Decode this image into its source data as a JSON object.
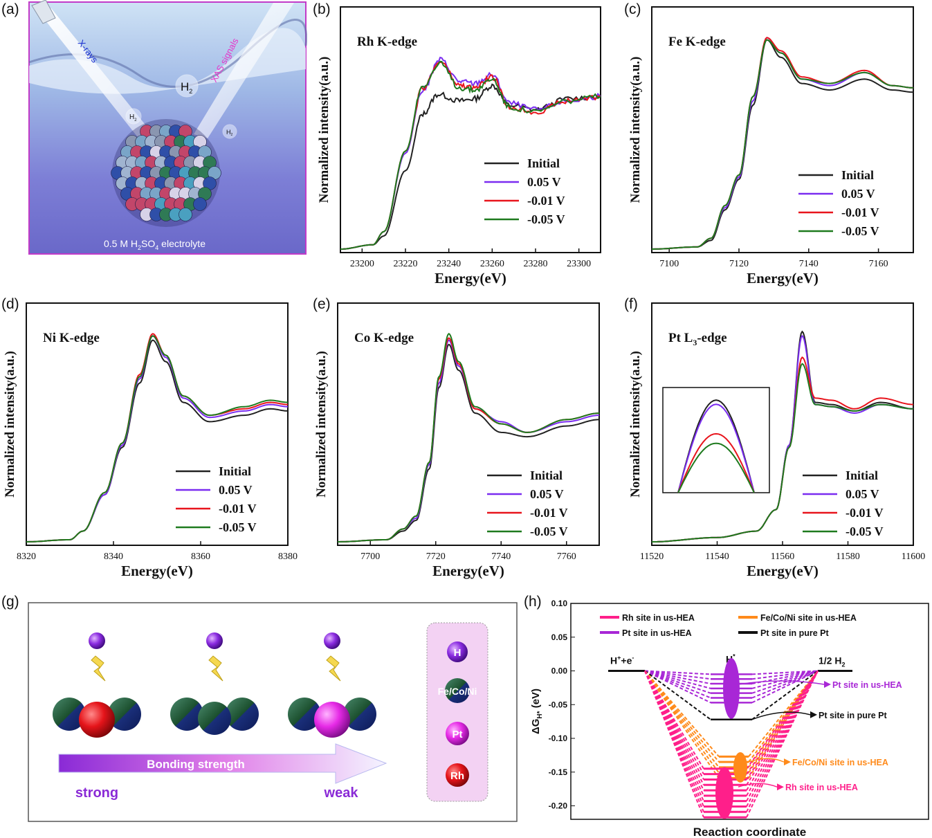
{
  "panel_letters": [
    "(a)",
    "(b)",
    "(c)",
    "(d)",
    "(e)",
    "(f)",
    "(g)",
    "(h)"
  ],
  "colors": {
    "initial": "#222222",
    "v005": "#7a2cf0",
    "vm001": "#e8141c",
    "vm005": "#1e7a1e",
    "h_rh": "#ff1f8a",
    "h_fe": "#ff8a1a",
    "h_pt": "#a827d6",
    "h_pure": "#111111"
  },
  "illustration": {
    "xrays": "X-rays",
    "xas": "XAS signals",
    "h2": "H",
    "h2_sub": "2",
    "electrolyte_pre": "0.5 M H",
    "electrolyte_sub1": "2",
    "electrolyte_mid": "SO",
    "electrolyte_sub2": "4",
    "electrolyte_post": " electrolyte"
  },
  "common": {
    "ylabel": "Normalized intensity(a.u.)",
    "xlabel": "Energy(eV)",
    "legend": [
      "Initial",
      "0.05 V",
      "-0.01 V",
      "-0.05 V"
    ]
  },
  "bonding": {
    "arrow_label": "Bonding strength",
    "strong": "strong",
    "weak": "weak",
    "key": [
      "H",
      "Fe/Co/Ni",
      "Pt",
      "Rh"
    ]
  },
  "chart_data": [
    {
      "type": "line",
      "id": "b",
      "title": "Rh K-edge",
      "xlabel": "Energy(eV)",
      "ylabel": "Normalized intensity(a.u.)",
      "xlim": [
        23190,
        23310
      ],
      "xticks": [
        23200,
        23220,
        23240,
        23260,
        23280,
        23300
      ],
      "series": [
        {
          "name": "Initial",
          "x": [
            23190,
            23205,
            23210,
            23220,
            23228,
            23235,
            23245,
            23252,
            23260,
            23268,
            23280,
            23295,
            23310
          ],
          "y": [
            0.0,
            0.02,
            0.06,
            0.36,
            0.62,
            0.71,
            0.68,
            0.69,
            0.75,
            0.66,
            0.64,
            0.69,
            0.7
          ]
        },
        {
          "name": "0.05 V",
          "x": [
            23190,
            23205,
            23210,
            23220,
            23228,
            23236,
            23245,
            23252,
            23260,
            23268,
            23280,
            23295,
            23310
          ],
          "y": [
            0.0,
            0.02,
            0.08,
            0.44,
            0.73,
            0.87,
            0.77,
            0.76,
            0.8,
            0.67,
            0.64,
            0.68,
            0.7
          ]
        },
        {
          "name": "-0.01 V",
          "x": [
            23190,
            23205,
            23210,
            23220,
            23228,
            23236,
            23245,
            23252,
            23260,
            23268,
            23280,
            23295,
            23310
          ],
          "y": [
            0.0,
            0.02,
            0.08,
            0.45,
            0.74,
            0.86,
            0.75,
            0.74,
            0.79,
            0.65,
            0.63,
            0.68,
            0.7
          ]
        },
        {
          "name": "-0.05 V",
          "x": [
            23190,
            23205,
            23210,
            23220,
            23228,
            23236,
            23245,
            23252,
            23260,
            23268,
            23280,
            23295,
            23310
          ],
          "y": [
            0.0,
            0.02,
            0.08,
            0.45,
            0.75,
            0.85,
            0.74,
            0.73,
            0.78,
            0.65,
            0.63,
            0.68,
            0.7
          ]
        }
      ]
    },
    {
      "type": "line",
      "id": "c",
      "title": "Fe K-edge",
      "xlabel": "Energy(eV)",
      "ylabel": "Normalized intensity(a.u.)",
      "xlim": [
        7095,
        7170
      ],
      "xticks": [
        7100,
        7120,
        7140,
        7160
      ],
      "series": [
        {
          "name": "Initial",
          "x": [
            7095,
            7108,
            7112,
            7116,
            7120,
            7124,
            7128,
            7132,
            7138,
            7146,
            7156,
            7164,
            7170
          ],
          "y": [
            0.0,
            0.01,
            0.04,
            0.18,
            0.32,
            0.66,
            0.96,
            0.88,
            0.76,
            0.73,
            0.78,
            0.73,
            0.72
          ]
        },
        {
          "name": "0.05 V",
          "x": [
            7095,
            7108,
            7112,
            7116,
            7120,
            7124,
            7128,
            7132,
            7138,
            7146,
            7156,
            7164,
            7170
          ],
          "y": [
            0.0,
            0.01,
            0.05,
            0.19,
            0.33,
            0.68,
            0.97,
            0.9,
            0.78,
            0.75,
            0.81,
            0.75,
            0.74
          ]
        },
        {
          "name": "-0.01 V",
          "x": [
            7095,
            7108,
            7112,
            7116,
            7120,
            7124,
            7128,
            7132,
            7138,
            7146,
            7156,
            7164,
            7170
          ],
          "y": [
            0.0,
            0.01,
            0.05,
            0.2,
            0.34,
            0.7,
            0.97,
            0.91,
            0.79,
            0.76,
            0.82,
            0.75,
            0.74
          ]
        },
        {
          "name": "-0.05 V",
          "x": [
            7095,
            7108,
            7112,
            7116,
            7120,
            7124,
            7128,
            7132,
            7138,
            7146,
            7156,
            7164,
            7170
          ],
          "y": [
            0.0,
            0.01,
            0.05,
            0.2,
            0.34,
            0.7,
            0.96,
            0.9,
            0.78,
            0.76,
            0.81,
            0.75,
            0.74
          ]
        }
      ]
    },
    {
      "type": "line",
      "id": "d",
      "title": "Ni K-edge",
      "xlabel": "Energy(eV)",
      "ylabel": "Normalized intensity(a.u.)",
      "xlim": [
        8320,
        8380
      ],
      "xticks": [
        8320,
        8340,
        8360,
        8380
      ],
      "series": [
        {
          "name": "Initial",
          "x": [
            8320,
            8330,
            8333,
            8338,
            8342,
            8346,
            8349,
            8352,
            8356,
            8362,
            8370,
            8376,
            8380
          ],
          "y": [
            0.0,
            0.01,
            0.05,
            0.22,
            0.44,
            0.74,
            0.94,
            0.84,
            0.65,
            0.56,
            0.59,
            0.62,
            0.61
          ]
        },
        {
          "name": "0.05 V",
          "x": [
            8320,
            8330,
            8333,
            8338,
            8342,
            8346,
            8349,
            8352,
            8356,
            8362,
            8370,
            8376,
            8380
          ],
          "y": [
            0.0,
            0.01,
            0.05,
            0.22,
            0.45,
            0.76,
            0.96,
            0.86,
            0.67,
            0.58,
            0.61,
            0.64,
            0.63
          ]
        },
        {
          "name": "-0.01 V",
          "x": [
            8320,
            8330,
            8333,
            8338,
            8342,
            8346,
            8349,
            8352,
            8356,
            8362,
            8370,
            8376,
            8380
          ],
          "y": [
            0.0,
            0.01,
            0.05,
            0.23,
            0.46,
            0.78,
            0.97,
            0.87,
            0.68,
            0.59,
            0.62,
            0.65,
            0.64
          ]
        },
        {
          "name": "-0.05 V",
          "x": [
            8320,
            8330,
            8333,
            8338,
            8342,
            8346,
            8349,
            8352,
            8356,
            8362,
            8370,
            8376,
            8380
          ],
          "y": [
            0.0,
            0.01,
            0.05,
            0.23,
            0.46,
            0.77,
            0.96,
            0.87,
            0.68,
            0.59,
            0.63,
            0.66,
            0.65
          ]
        }
      ]
    },
    {
      "type": "line",
      "id": "e",
      "title": "Co K-edge",
      "xlabel": "Energy(eV)",
      "ylabel": "Normalized intensity(a.u.)",
      "xlim": [
        7690,
        7770
      ],
      "xticks": [
        7700,
        7720,
        7740,
        7760
      ],
      "series": [
        {
          "name": "Initial",
          "x": [
            7690,
            7705,
            7710,
            7714,
            7718,
            7721,
            7724,
            7727,
            7732,
            7740,
            7748,
            7760,
            7770
          ],
          "y": [
            0.0,
            0.01,
            0.05,
            0.1,
            0.34,
            0.72,
            0.92,
            0.8,
            0.6,
            0.51,
            0.49,
            0.54,
            0.57
          ]
        },
        {
          "name": "0.05 V",
          "x": [
            7690,
            7705,
            7710,
            7714,
            7718,
            7721,
            7724,
            7727,
            7732,
            7740,
            7748,
            7760,
            7770
          ],
          "y": [
            0.0,
            0.01,
            0.06,
            0.11,
            0.36,
            0.74,
            0.94,
            0.82,
            0.62,
            0.56,
            0.51,
            0.56,
            0.59
          ]
        },
        {
          "name": "-0.01 V",
          "x": [
            7690,
            7705,
            7710,
            7714,
            7718,
            7721,
            7724,
            7727,
            7732,
            7740,
            7748,
            7760,
            7770
          ],
          "y": [
            0.0,
            0.01,
            0.06,
            0.12,
            0.37,
            0.76,
            0.95,
            0.83,
            0.62,
            0.55,
            0.51,
            0.57,
            0.6
          ]
        },
        {
          "name": "-0.05 V",
          "x": [
            7690,
            7705,
            7710,
            7714,
            7718,
            7721,
            7724,
            7727,
            7732,
            7740,
            7748,
            7760,
            7770
          ],
          "y": [
            0.0,
            0.01,
            0.06,
            0.12,
            0.37,
            0.77,
            0.97,
            0.84,
            0.63,
            0.55,
            0.51,
            0.57,
            0.6
          ]
        }
      ]
    },
    {
      "type": "line",
      "id": "f",
      "title": "Pt L",
      "title_sub": "3",
      "title_post": "-edge",
      "xlabel": "Energy(eV)",
      "ylabel": "Normalized intensity(a.u.)",
      "xlim": [
        11520,
        11600
      ],
      "xticks": [
        11520,
        11540,
        11560,
        11580,
        11600
      ],
      "series": [
        {
          "name": "Initial",
          "x": [
            11520,
            11540,
            11552,
            11558,
            11562,
            11566,
            11570,
            11575,
            11582,
            11590,
            11600
          ],
          "y": [
            0.0,
            0.02,
            0.05,
            0.15,
            0.45,
            0.98,
            0.65,
            0.64,
            0.61,
            0.65,
            0.62
          ]
        },
        {
          "name": "0.05 V",
          "x": [
            11520,
            11540,
            11552,
            11558,
            11562,
            11566,
            11570,
            11575,
            11582,
            11590,
            11600
          ],
          "y": [
            0.0,
            0.02,
            0.05,
            0.15,
            0.45,
            0.96,
            0.64,
            0.63,
            0.6,
            0.64,
            0.62
          ]
        },
        {
          "name": "-0.01 V",
          "x": [
            11520,
            11540,
            11552,
            11558,
            11562,
            11566,
            11570,
            11575,
            11582,
            11590,
            11600
          ],
          "y": [
            0.0,
            0.02,
            0.05,
            0.15,
            0.44,
            0.86,
            0.67,
            0.66,
            0.62,
            0.67,
            0.64
          ]
        },
        {
          "name": "-0.05 V",
          "x": [
            11520,
            11540,
            11552,
            11558,
            11562,
            11566,
            11570,
            11575,
            11582,
            11590,
            11600
          ],
          "y": [
            0.0,
            0.02,
            0.05,
            0.15,
            0.44,
            0.83,
            0.64,
            0.63,
            0.61,
            0.64,
            0.62
          ]
        }
      ]
    },
    {
      "type": "energy-diagram",
      "id": "h",
      "ylabel": "ΔG",
      "ylabel_sub": "H*",
      "ylabel_post": " (eV)",
      "xlabel": "Reaction coordinate",
      "ylim": [
        -0.22,
        0.1
      ],
      "yticks": [
        "0.10",
        "0.05",
        "0.00",
        "-0.05",
        "-0.10",
        "-0.15",
        "-0.20"
      ],
      "state_labels": {
        "start": "H",
        "start_sup": "+",
        "start_post": "+e",
        "start_sup2": "-",
        "mid": "H",
        "mid_sup": "*",
        "end": "1/2 H",
        "end_sub": "2"
      },
      "legend": [
        "Rh site in us-HEA",
        "Fe/Co/Ni site in us-HEA",
        "Pt  site in us-HEA",
        "Pt site in pure Pt"
      ],
      "annotations": [
        "Pt site in us-HEA",
        "Pt site in pure Pt",
        "Fe/Co/Ni site in us-HEA",
        "Rh site in us-HEA"
      ],
      "levels": {
        "pt_hea": [
          -0.005,
          -0.012,
          -0.019,
          -0.026,
          -0.033,
          -0.04,
          -0.047
        ],
        "pure_pt": [
          -0.072
        ],
        "fe_hea": [
          -0.127,
          -0.135,
          -0.143,
          -0.151,
          -0.159
        ],
        "rh_hea": [
          -0.145,
          -0.153,
          -0.161,
          -0.169,
          -0.177,
          -0.185,
          -0.193,
          -0.201,
          -0.209,
          -0.217
        ]
      }
    }
  ]
}
